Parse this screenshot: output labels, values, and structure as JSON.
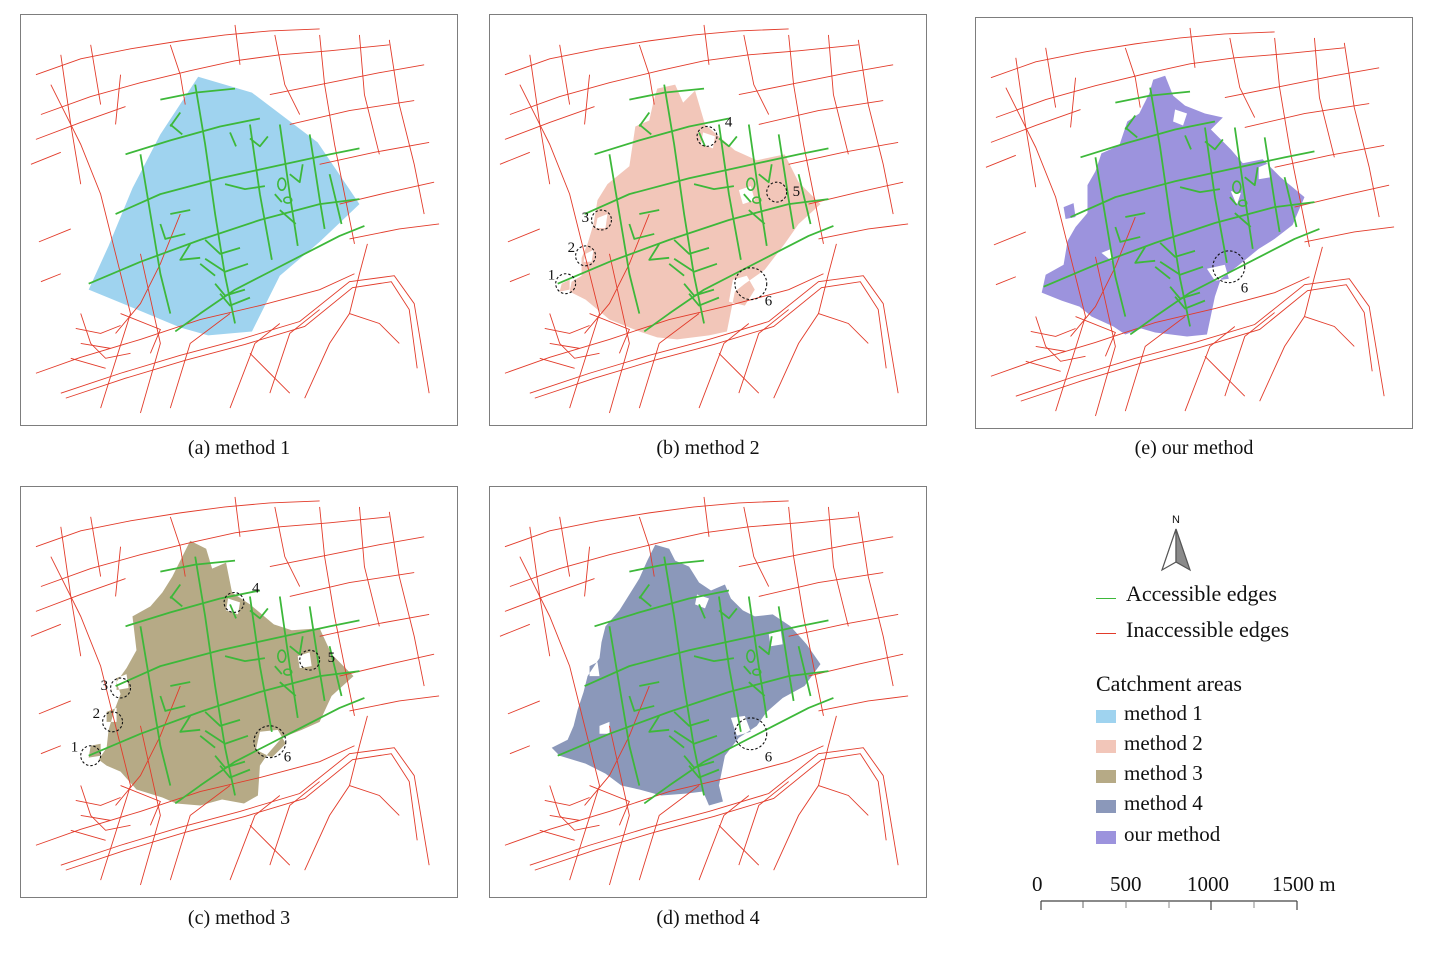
{
  "panels": [
    {
      "id": "a",
      "caption": "(a) method 1",
      "fill": "#9fd3ef",
      "markers": []
    },
    {
      "id": "b",
      "caption": "(b) method 2",
      "fill": "#f2c6b9",
      "markers": [
        "1",
        "2",
        "3",
        "4",
        "5",
        "6"
      ]
    },
    {
      "id": "e",
      "caption": "(e) our method",
      "fill": "#9c93dd",
      "markers": [
        "6"
      ]
    },
    {
      "id": "c",
      "caption": "(c) method 3",
      "fill": "#b6aa86",
      "markers": [
        "1",
        "2",
        "3",
        "4",
        "5",
        "6"
      ]
    },
    {
      "id": "d",
      "caption": "(d) method 4",
      "fill": "#8b98ba",
      "markers": [
        "6"
      ]
    }
  ],
  "colors": {
    "accessible": "#3db83a",
    "inaccessible": "#e23b2a",
    "frame": "#7d7d7d",
    "marker": "#111111"
  },
  "north_arrow": {
    "label": "N",
    "icon": "north-arrow-icon"
  },
  "legend": {
    "accessible_label": "Accessible edges",
    "inaccessible_label": "Inaccessible edges",
    "catchment_heading": "Catchment areas",
    "catchment_items": [
      {
        "label": "method 1",
        "color": "#9fd3ef"
      },
      {
        "label": "method 2",
        "color": "#f2c6b9"
      },
      {
        "label": "method 3",
        "color": "#b6aa86"
      },
      {
        "label": "method 4",
        "color": "#8b98ba"
      },
      {
        "label": "our method",
        "color": "#9c93dd"
      }
    ]
  },
  "scale_bar": {
    "labels": [
      "0",
      "500",
      "1000",
      "1500 m"
    ]
  }
}
